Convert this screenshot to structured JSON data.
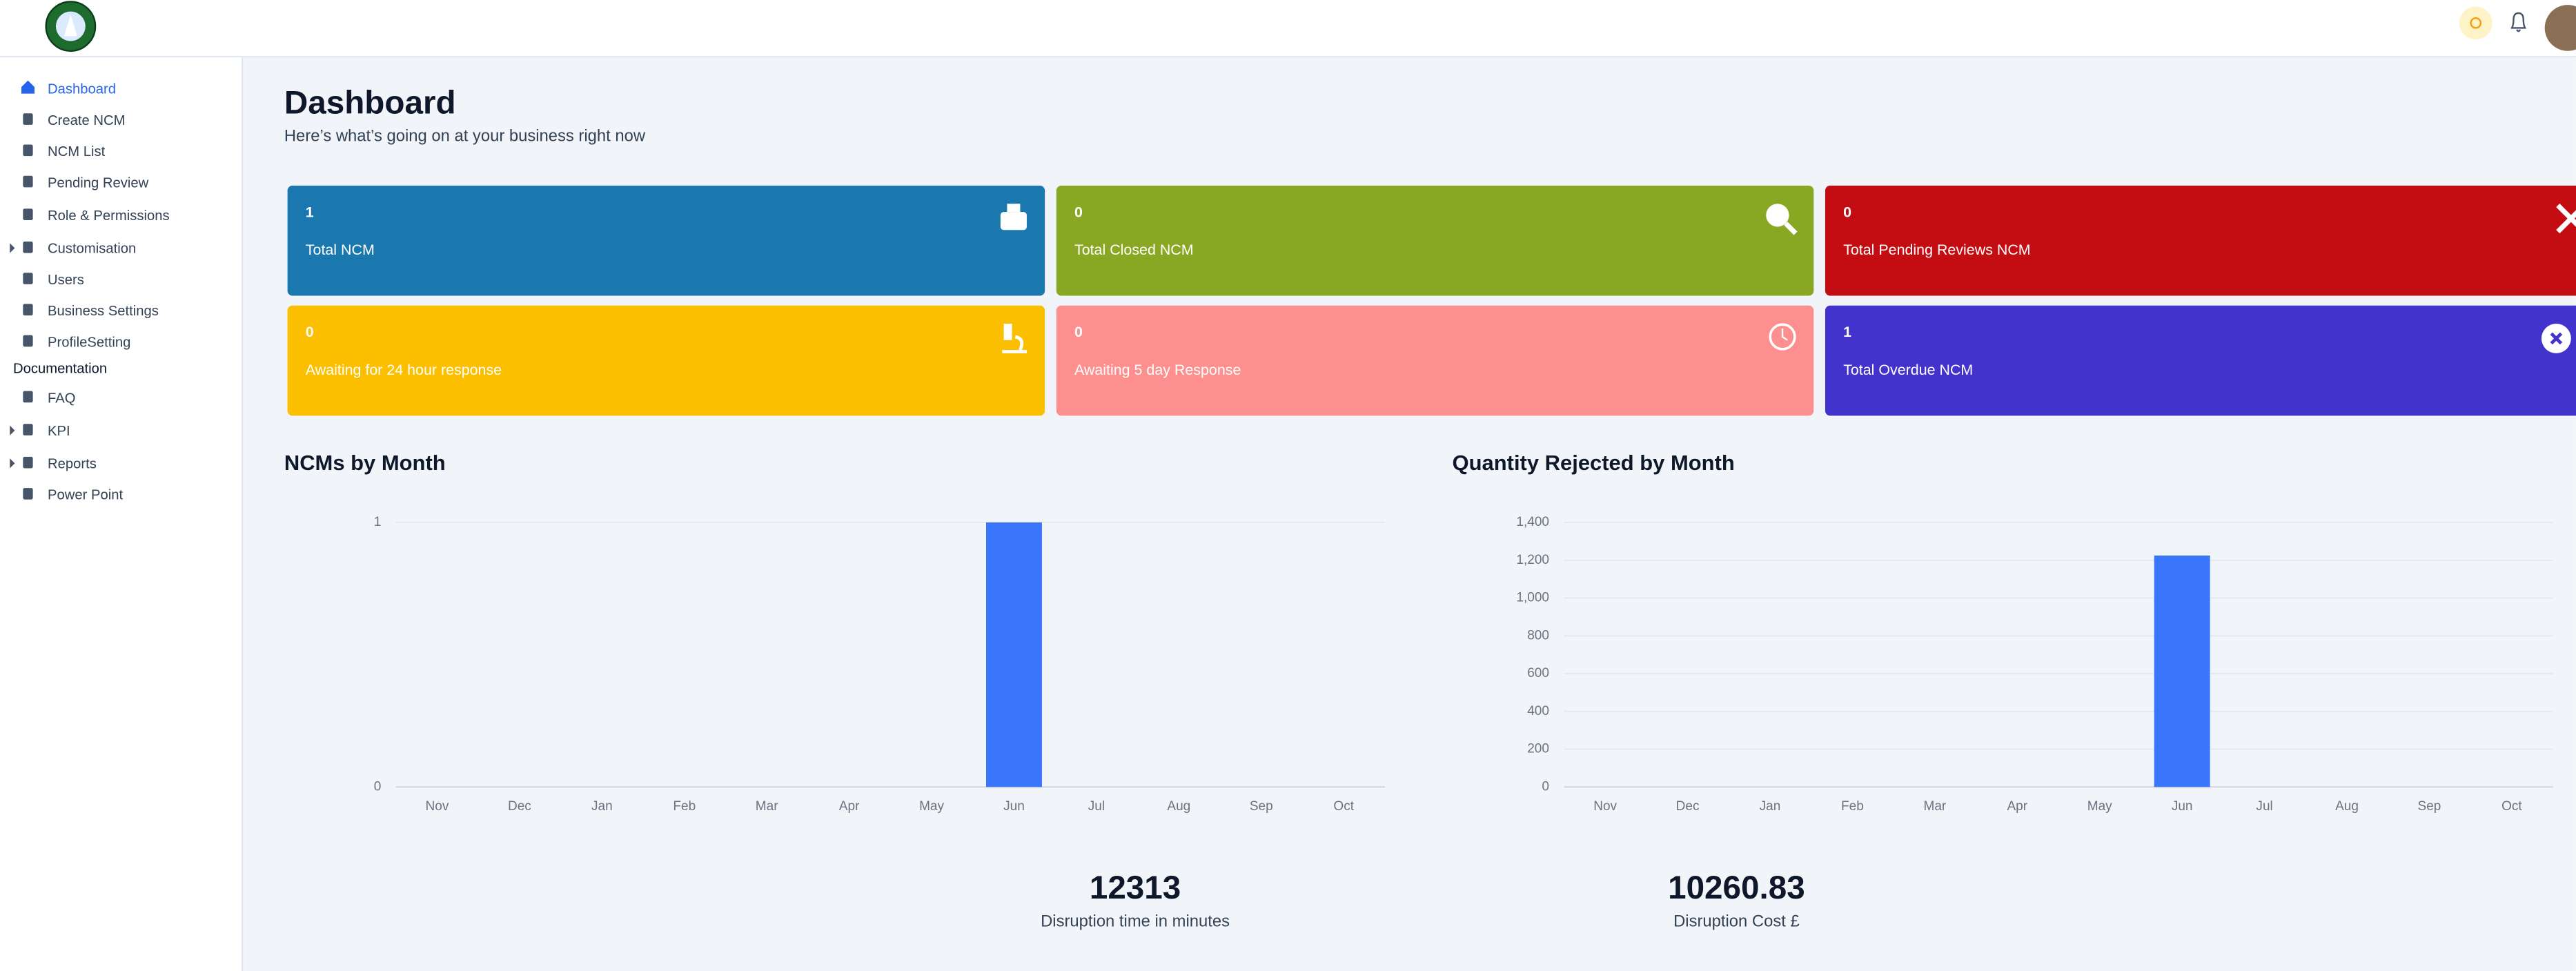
{
  "header": {
    "title": "Dashboard",
    "subtitle": "Here’s what’s going on at your business right now"
  },
  "sidebar": {
    "items": [
      "Dashboard",
      "Create NCM",
      "NCM List",
      "Pending Review",
      "Role & Permissions",
      "Customisation",
      "Users",
      "Business Settings",
      "ProfileSetting"
    ],
    "section": "Documentation",
    "doc_items": [
      "FAQ",
      "KPI",
      "Reports",
      "Power Point"
    ]
  },
  "cards": [
    {
      "value": 1,
      "label": "Total NCM",
      "color": "#1a78ae"
    },
    {
      "value": 0,
      "label": "Total Closed NCM",
      "color": "#88a824"
    },
    {
      "value": 0,
      "label": "Total Pending Reviews NCM",
      "color": "#c40d12"
    },
    {
      "value": 0,
      "label": "Awaiting for 24 hour response",
      "color": "#fcbf00"
    },
    {
      "value": 0,
      "label": "Awaiting 5 day Response",
      "color": "#fe8f8f"
    },
    {
      "value": 1,
      "label": "Total Overdue NCM",
      "color": "#4133cb"
    }
  ],
  "chart_data": [
    {
      "type": "bar",
      "title": "NCMs by Month",
      "categories": [
        "Nov",
        "Dec",
        "Jan",
        "Feb",
        "Mar",
        "Apr",
        "May",
        "Jun",
        "Jul",
        "Aug",
        "Sep",
        "Oct"
      ],
      "values": [
        0,
        0,
        0,
        0,
        0,
        0,
        0,
        1,
        0,
        0,
        0,
        0
      ],
      "color": "#3a76fb",
      "ylim": [
        0,
        1
      ],
      "yticks": [
        0,
        1
      ],
      "grid": true
    },
    {
      "type": "bar",
      "title": "Quantity Rejected by Month",
      "categories": [
        "Nov",
        "Dec",
        "Jan",
        "Feb",
        "Mar",
        "Apr",
        "May",
        "Jun",
        "Jul",
        "Aug",
        "Sep",
        "Oct"
      ],
      "values": [
        0,
        0,
        0,
        0,
        0,
        0,
        0,
        1225,
        0,
        0,
        0,
        0
      ],
      "color": "#3a76fb",
      "ylim": [
        0,
        1400
      ],
      "yticks": [
        0,
        200,
        400,
        600,
        800,
        {
          "value": 1000,
          "label": "1,000"
        },
        {
          "value": 1200,
          "label": "1,200"
        },
        {
          "value": 1400,
          "label": "1,400"
        }
      ],
      "grid": true
    }
  ],
  "stats": [
    {
      "value": 12313,
      "label": "Disruption time in minutes"
    },
    {
      "value": 10260.83,
      "label": "Disruption Cost £"
    }
  ]
}
